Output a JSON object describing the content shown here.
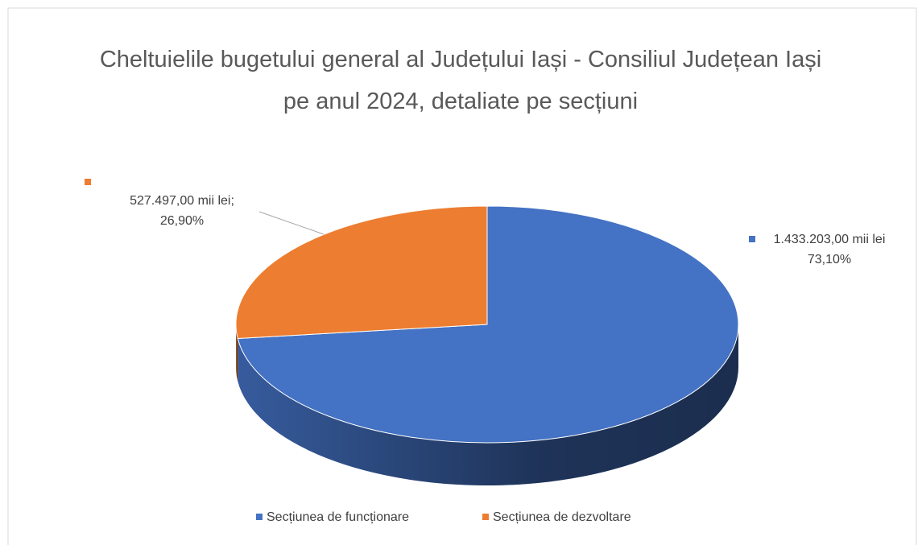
{
  "chart_data": {
    "type": "pie3d",
    "title": "Cheltuielile bugetului general al Județului Iași - Consiliul Județean Iași pe anul 2024, detaliate pe secțiuni",
    "categories": [
      "Secțiunea de funcționare",
      "Secțiunea de dezvoltare"
    ],
    "values": [
      1433203,
      527497
    ],
    "value_labels": [
      "1.433.203,00 mii lei",
      "527.497,00 mii lei;"
    ],
    "percentages": [
      73.1,
      26.9
    ],
    "percentage_labels": [
      "73,10%",
      "26,90%"
    ],
    "colors": [
      "#4472c4",
      "#ed7d31"
    ],
    "legend": "bottom"
  }
}
